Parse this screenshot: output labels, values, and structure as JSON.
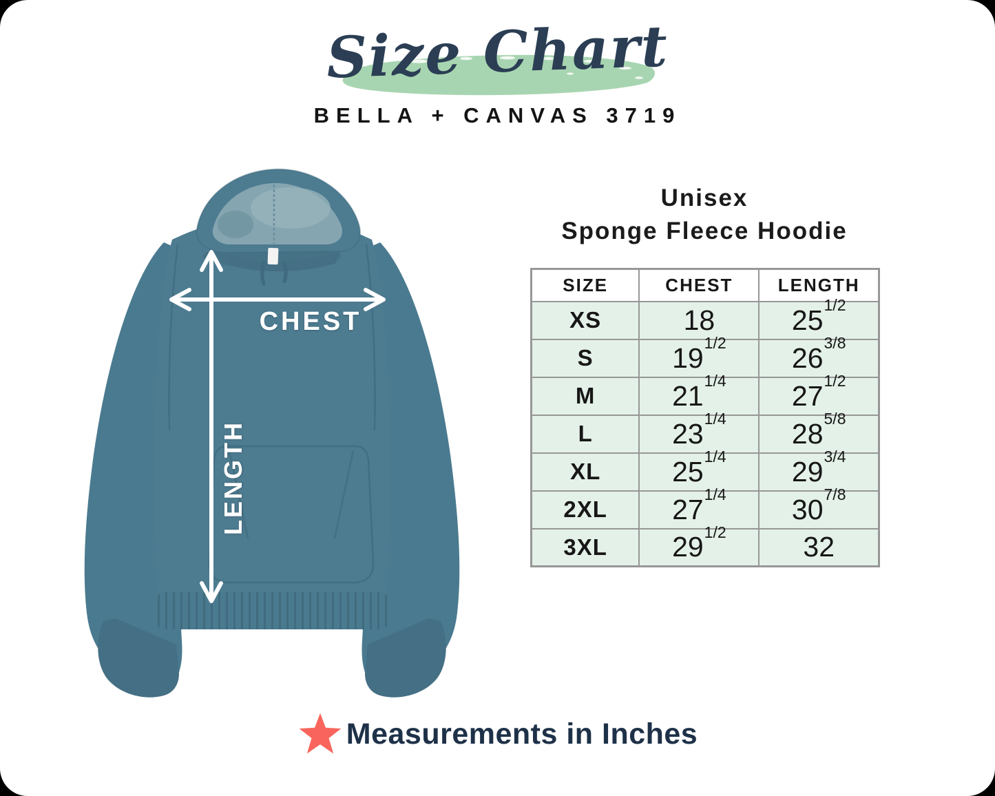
{
  "header": {
    "title": "Size Chart",
    "subtitle": "BELLA + CANVAS 3719"
  },
  "product_heading": {
    "line1": "Unisex",
    "line2": "Sponge Fleece Hoodie"
  },
  "diagram_labels": {
    "chest": "CHEST",
    "length": "LENGTH"
  },
  "chart_data": {
    "type": "table",
    "title": "Unisex Sponge Fleece Hoodie — Bella + Canvas 3719 Size Chart",
    "units": "inches",
    "columns": [
      "SIZE",
      "CHEST",
      "LENGTH"
    ],
    "rows": [
      {
        "size": "XS",
        "chest_whole": "18",
        "chest_frac": "",
        "length_whole": "25",
        "length_frac": "1/2"
      },
      {
        "size": "S",
        "chest_whole": "19",
        "chest_frac": "1/2",
        "length_whole": "26",
        "length_frac": "3/8"
      },
      {
        "size": "M",
        "chest_whole": "21",
        "chest_frac": "1/4",
        "length_whole": "27",
        "length_frac": "1/2"
      },
      {
        "size": "L",
        "chest_whole": "23",
        "chest_frac": "1/4",
        "length_whole": "28",
        "length_frac": "5/8"
      },
      {
        "size": "XL",
        "chest_whole": "25",
        "chest_frac": "1/4",
        "length_whole": "29",
        "length_frac": "3/4"
      },
      {
        "size": "2XL",
        "chest_whole": "27",
        "chest_frac": "1/4",
        "length_whole": "30",
        "length_frac": "7/8"
      },
      {
        "size": "3XL",
        "chest_whole": "29",
        "chest_frac": "1/2",
        "length_whole": "32",
        "length_frac": ""
      }
    ]
  },
  "footnote": {
    "text": "Measurements in Inches"
  },
  "colors": {
    "brush_green": "#a8d5b1",
    "title_navy": "#2b3e54",
    "hoodie_teal": "#4d7b90",
    "table_row_mint": "#e4f1e8",
    "table_border_gray": "#979797",
    "star_coral": "#f9655c",
    "footnote_navy": "#1e3148"
  }
}
